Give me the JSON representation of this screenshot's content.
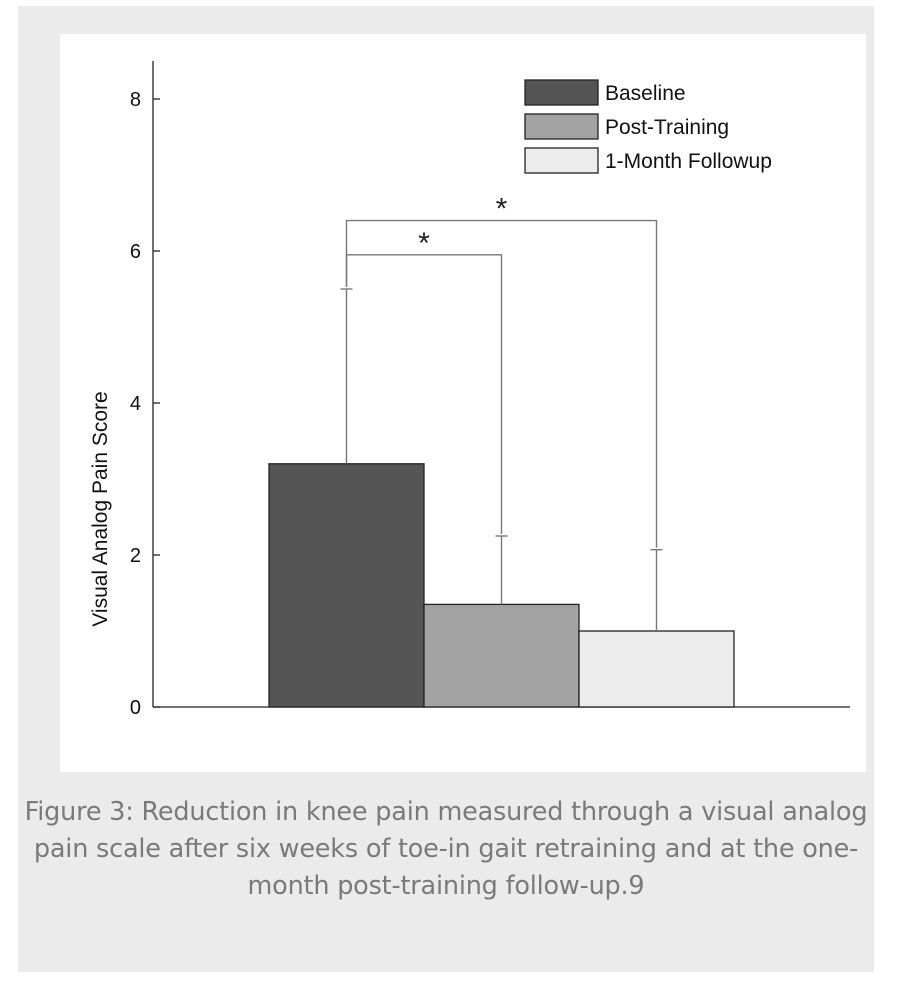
{
  "caption": "Figure 3: Reduction in knee pain measured through a visual analog pain scale after six weeks of toe-in gait retraining and at the one-month post-training follow-up.9",
  "chart_data": {
    "type": "bar",
    "ylabel": "Visual Analog Pain Score",
    "xlabel": "",
    "ylim": [
      0,
      8.5
    ],
    "yticks": [
      0,
      2,
      4,
      6,
      8
    ],
    "grid": false,
    "legend_position": "top-right",
    "categories": [
      "Baseline",
      "Post-Training",
      "1-Month Followup"
    ],
    "values": [
      3.2,
      1.35,
      1.0
    ],
    "error_upper": [
      5.5,
      2.25,
      2.07
    ],
    "colors": [
      "#555555",
      "#a3a3a3",
      "#ececec"
    ],
    "significance": [
      {
        "from": "Baseline",
        "to": "Post-Training",
        "y": 5.95,
        "label": "*"
      },
      {
        "from": "Baseline",
        "to": "1-Month Followup",
        "y": 6.4,
        "label": "*"
      }
    ]
  }
}
